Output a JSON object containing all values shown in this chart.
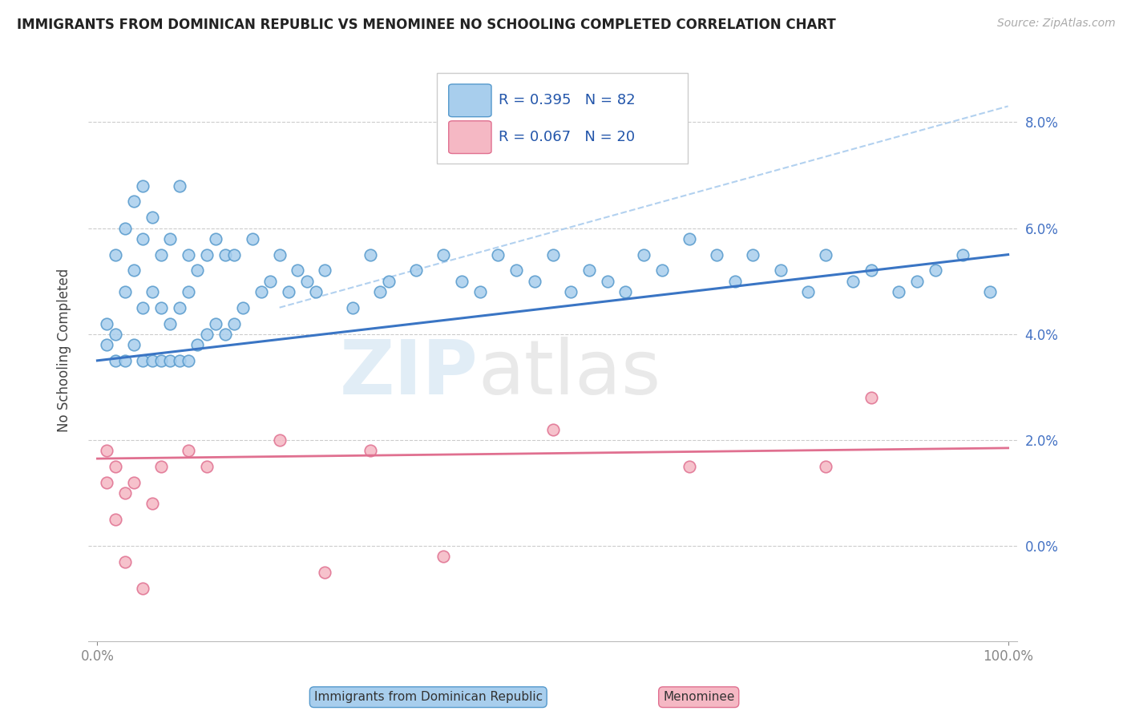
{
  "title": "IMMIGRANTS FROM DOMINICAN REPUBLIC VS MENOMINEE NO SCHOOLING COMPLETED CORRELATION CHART",
  "source": "Source: ZipAtlas.com",
  "ylabel": "No Schooling Completed",
  "R1": 0.395,
  "N1": 82,
  "R2": 0.067,
  "N2": 20,
  "color_blue_fill": "#A8CEED",
  "color_blue_edge": "#5599CC",
  "color_pink_fill": "#F5B8C4",
  "color_pink_edge": "#E07090",
  "color_blue_line": "#3A75C4",
  "color_pink_line": "#E07090",
  "color_dash": "#AACCEE",
  "legend_label1": "Immigrants from Dominican Republic",
  "legend_label2": "Menominee",
  "ytick_labels": [
    "0.0%",
    "2.0%",
    "4.0%",
    "6.0%",
    "8.0%"
  ],
  "ytick_vals": [
    0,
    2,
    4,
    6,
    8
  ],
  "xlim": [
    -1,
    101
  ],
  "ylim": [
    -1.8,
    9.2
  ],
  "blue_line_x0": 0,
  "blue_line_y0": 3.5,
  "blue_line_x1": 100,
  "blue_line_y1": 5.5,
  "pink_line_x0": 0,
  "pink_line_y0": 1.65,
  "pink_line_x1": 100,
  "pink_line_y1": 1.85,
  "dash_line_x0": 20,
  "dash_line_y0": 4.5,
  "dash_line_x1": 100,
  "dash_line_y1": 8.3
}
